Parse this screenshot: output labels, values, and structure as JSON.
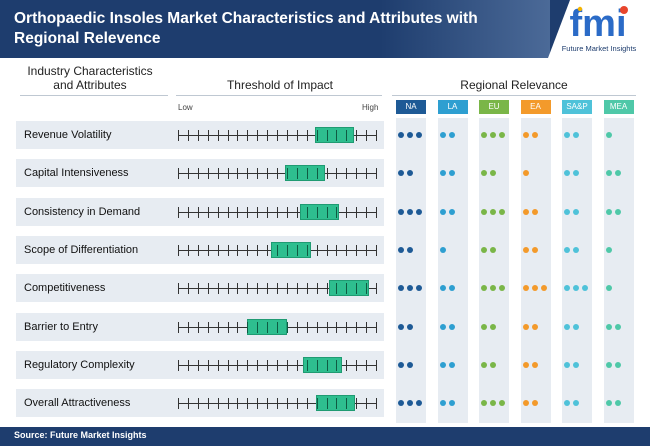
{
  "header": {
    "title": "Orthopaedic Insoles Market Characteristics and Attributes with Regional Relevence",
    "logo_letters": "fmi",
    "logo_caption": "Future Market Insights"
  },
  "columns": {
    "industry": "Industry Characteristics and Attributes",
    "threshold": "Threshold of Impact",
    "regional": "Regional Relevance"
  },
  "scale": {
    "low": "Low",
    "high": "High"
  },
  "footer": {
    "source": "Source: Future Market Insights"
  },
  "colors": {
    "header_bg": "#1e3d6e",
    "box_fill": "#2ebe8f",
    "row_bg": "#e7ecf2",
    "na": "#1e5a96",
    "la": "#2e9fd1",
    "eu": "#7ab648",
    "ea": "#f39a2b",
    "sap": "#4fc2d9",
    "mea": "#4fc8a8"
  },
  "chart_data": {
    "type": "table",
    "title": "Orthopaedic Insoles Market Characteristics and Attributes with Regional Relevence",
    "scale_range": [
      0,
      20
    ],
    "regions": [
      {
        "code": "NA",
        "color": "#1e5a96"
      },
      {
        "code": "LA",
        "color": "#2e9fd1"
      },
      {
        "code": "EU",
        "color": "#7ab648"
      },
      {
        "code": "EA",
        "color": "#f39a2b"
      },
      {
        "code": "SA&P",
        "color": "#4fc2d9"
      },
      {
        "code": "MEA",
        "color": "#4fc8a8"
      }
    ],
    "attributes": [
      {
        "name": "Revenue Volatility",
        "impact_low": 13.8,
        "impact_high": 17.8,
        "relevance": [
          3,
          2,
          3,
          2,
          2,
          1
        ]
      },
      {
        "name": "Capital Intensiveness",
        "impact_low": 10.8,
        "impact_high": 14.8,
        "relevance": [
          2,
          2,
          2,
          1,
          2,
          2
        ]
      },
      {
        "name": "Consistency in Demand",
        "impact_low": 12.3,
        "impact_high": 16.3,
        "relevance": [
          3,
          2,
          3,
          2,
          2,
          2
        ]
      },
      {
        "name": "Scope of Differentiation",
        "impact_low": 9.4,
        "impact_high": 13.4,
        "relevance": [
          2,
          1,
          2,
          2,
          2,
          1
        ]
      },
      {
        "name": "Competitiveness",
        "impact_low": 15.3,
        "impact_high": 19.3,
        "relevance": [
          3,
          2,
          3,
          3,
          3,
          1
        ]
      },
      {
        "name": "Barrier to Entry",
        "impact_low": 7.0,
        "impact_high": 11.0,
        "relevance": [
          2,
          2,
          2,
          2,
          2,
          2
        ]
      },
      {
        "name": "Regulatory Complexity",
        "impact_low": 12.6,
        "impact_high": 16.6,
        "relevance": [
          2,
          2,
          2,
          2,
          2,
          2
        ]
      },
      {
        "name": "Overall Attractiveness",
        "impact_low": 13.9,
        "impact_high": 17.9,
        "relevance": [
          3,
          2,
          3,
          2,
          2,
          2
        ]
      }
    ]
  }
}
